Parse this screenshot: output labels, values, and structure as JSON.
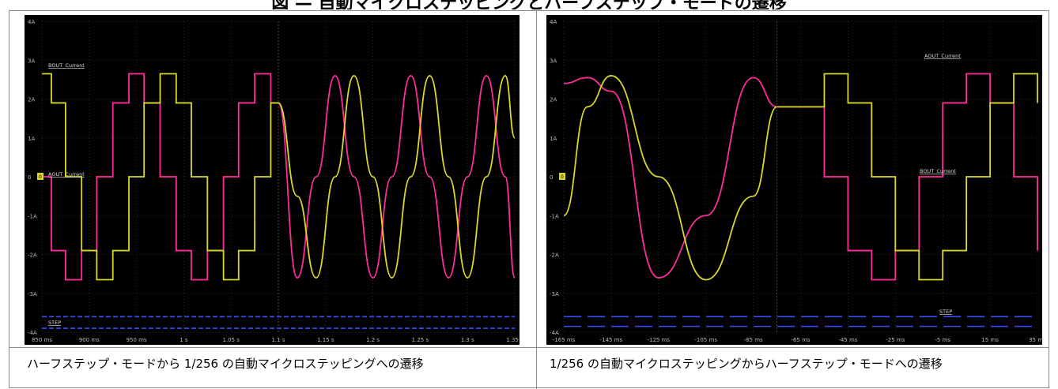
{
  "page": {
    "title": "図 — 自動マイクロステッピングとハーフステップ・モードの遷移",
    "colors": {
      "a_current": "#ff2d9a",
      "b_current": "#d8d82a",
      "step": "#3a4dff",
      "grid": "#3a3a3a",
      "background": "#000000"
    }
  },
  "figures": [
    {
      "caption": "ハーフステップ・モードから 1/256 の自動マイクロステッピングへの遷移",
      "labels": {
        "bout": "BOUT_Current",
        "aout": "AOUT_Current",
        "step": "STEP",
        "marker": "0"
      }
    },
    {
      "caption": "1/256 の自動マイクロステッピングからハーフステップ・モードへの遷移",
      "labels": {
        "bout": "BOUT_Current",
        "aout": "AOUT_Current",
        "step": "STEP",
        "marker": "0"
      }
    }
  ],
  "chart_data": [
    {
      "type": "line",
      "title": "",
      "xlabel": "",
      "ylabel": "",
      "ylim": [
        -4,
        4
      ],
      "yticks": [
        "4A",
        "3A",
        "2A",
        "1A",
        "0",
        "-1A",
        "-2A",
        "-3A",
        "-4A"
      ],
      "xticks": [
        "850 ms",
        "900 ms",
        "950 ms",
        "1 s",
        "1.05 s",
        "1.1 s",
        "1.15 s",
        "1.2 s",
        "1.25 s",
        "1.3 s",
        "1.35 s"
      ],
      "xlim": [
        0.85,
        1.35
      ],
      "transition_x": 1.1,
      "series": [
        {
          "name": "AOUT_Current",
          "x": [
            0.85,
            0.86,
            0.875,
            0.892,
            0.908,
            0.925,
            0.942,
            0.958,
            0.975,
            0.992,
            1.008,
            1.025,
            1.042,
            1.058,
            1.075,
            1.092,
            1.1,
            1.12,
            1.14,
            1.16,
            1.18,
            1.2,
            1.22,
            1.24,
            1.26,
            1.28,
            1.3,
            1.32,
            1.34,
            1.35
          ],
          "values": [
            0,
            -1.9,
            -2.65,
            -1.9,
            0,
            1.9,
            2.65,
            1.9,
            0,
            -1.9,
            -2.65,
            -1.9,
            0,
            1.9,
            2.65,
            1.9,
            1.9,
            -2.6,
            0,
            2.6,
            0,
            -2.6,
            0,
            2.6,
            0,
            -2.6,
            0,
            2.6,
            0,
            -2.6
          ]
        },
        {
          "name": "BOUT_Current",
          "x": [
            0.85,
            0.86,
            0.875,
            0.892,
            0.908,
            0.925,
            0.942,
            0.958,
            0.975,
            0.992,
            1.008,
            1.025,
            1.042,
            1.058,
            1.075,
            1.092,
            1.1,
            1.12,
            1.14,
            1.16,
            1.18,
            1.2,
            1.22,
            1.24,
            1.26,
            1.28,
            1.3,
            1.32,
            1.34,
            1.35
          ],
          "values": [
            2.65,
            1.9,
            0,
            -1.9,
            -2.65,
            -1.9,
            0,
            1.9,
            2.65,
            1.9,
            0,
            -1.9,
            -2.65,
            -1.9,
            0,
            1.9,
            1.9,
            -0.5,
            -2.6,
            0,
            2.6,
            0,
            -2.6,
            0,
            2.6,
            0,
            -2.6,
            0,
            2.6,
            1.0
          ]
        },
        {
          "name": "STEP",
          "levels": [
            -3.6,
            -3.9
          ]
        }
      ]
    },
    {
      "type": "line",
      "title": "",
      "xlabel": "",
      "ylabel": "",
      "ylim": [
        -4,
        4
      ],
      "yticks": [
        "4A",
        "3A",
        "2A",
        "1A",
        "0",
        "-1A",
        "-2A",
        "-3A",
        "-4A"
      ],
      "xticks": [
        "-165 ms",
        "-145 ms",
        "-125 ms",
        "-105 ms",
        "-85 ms",
        "-65 ms",
        "-45 ms",
        "-25 ms",
        "-5 ms",
        "15 ms",
        "35 ms"
      ],
      "xlim": [
        -165,
        35
      ],
      "transition_x": -75,
      "series": [
        {
          "name": "AOUT_Current",
          "x": [
            -165,
            -155,
            -145,
            -125,
            -105,
            -85,
            -75,
            -75,
            -55,
            -45,
            -35,
            -25,
            -15,
            -5,
            5,
            15,
            25,
            35
          ],
          "values": [
            2.4,
            2.55,
            2.2,
            -2.6,
            -1.0,
            2.55,
            1.8,
            1.8,
            0,
            -1.9,
            -2.65,
            -1.9,
            0,
            1.9,
            2.65,
            1.9,
            0,
            -1.9
          ]
        },
        {
          "name": "BOUT_Current",
          "x": [
            -165,
            -155,
            -145,
            -125,
            -105,
            -85,
            -75,
            -75,
            -55,
            -45,
            -35,
            -25,
            -15,
            -5,
            5,
            15,
            25,
            35
          ],
          "values": [
            -1.0,
            1.8,
            2.6,
            0,
            -2.65,
            -0.5,
            1.8,
            1.8,
            2.65,
            1.9,
            0,
            -1.9,
            -2.65,
            -1.9,
            0,
            1.9,
            2.65,
            1.9
          ]
        },
        {
          "name": "STEP",
          "levels": [
            -3.6,
            -3.85
          ]
        }
      ]
    }
  ]
}
